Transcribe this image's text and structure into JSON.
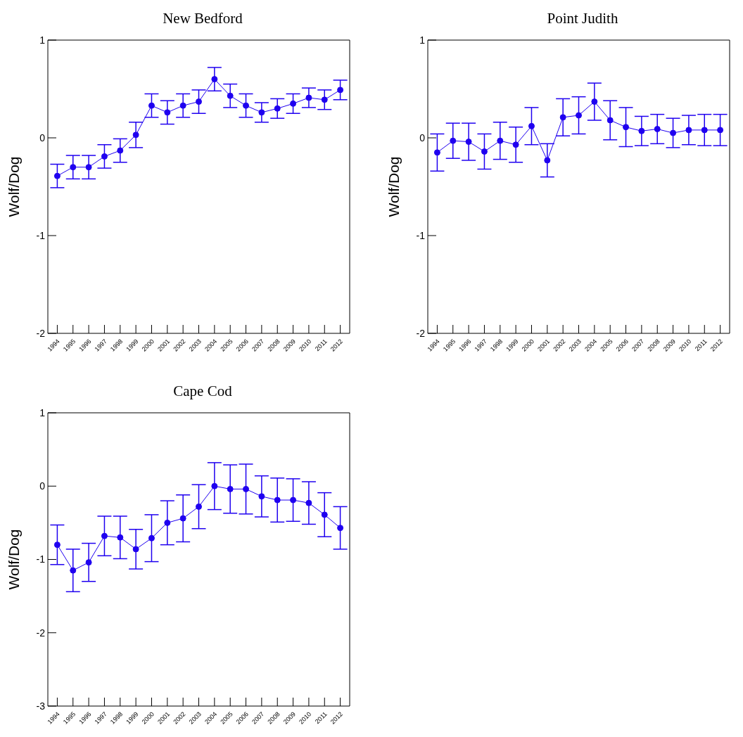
{
  "chart_data": [
    {
      "type": "line",
      "title": "New Bedford",
      "ylabel": "Wolf/Dog",
      "categories": [
        "1994",
        "1995",
        "1996",
        "1997",
        "1998",
        "1999",
        "2000",
        "2001",
        "2002",
        "2003",
        "2004",
        "2005",
        "2006",
        "2007",
        "2008",
        "2009",
        "2010",
        "2011",
        "2012"
      ],
      "ylim": [
        -2,
        1
      ],
      "yticks": [
        -2,
        -1,
        0,
        1
      ],
      "marker": "circle",
      "line_style": "solid",
      "series": [
        {
          "color": "#1f00f0",
          "values": [
            -0.39,
            -0.3,
            -0.3,
            -0.19,
            -0.13,
            0.03,
            0.33,
            0.26,
            0.33,
            0.37,
            0.6,
            0.43,
            0.33,
            0.26,
            0.3,
            0.35,
            0.41,
            0.39,
            0.49
          ],
          "errors": [
            0.12,
            0.12,
            0.12,
            0.12,
            0.12,
            0.13,
            0.12,
            0.12,
            0.12,
            0.12,
            0.12,
            0.12,
            0.12,
            0.1,
            0.1,
            0.1,
            0.1,
            0.1,
            0.1
          ]
        }
      ]
    },
    {
      "type": "line",
      "title": "Point Judith",
      "ylabel": "Wolf/Dog",
      "categories": [
        "1994",
        "1995",
        "1996",
        "1997",
        "1998",
        "1999",
        "2000",
        "2001",
        "2002",
        "2003",
        "2004",
        "2005",
        "2006",
        "2007",
        "2008",
        "2009",
        "2010",
        "2011",
        "2012"
      ],
      "ylim": [
        -2,
        1
      ],
      "yticks": [
        -2,
        -1,
        0,
        1
      ],
      "marker": "circle",
      "line_style": "solid",
      "series": [
        {
          "color": "#1f00f0",
          "values": [
            -0.15,
            -0.03,
            -0.04,
            -0.14,
            -0.03,
            -0.07,
            0.12,
            -0.23,
            0.21,
            0.23,
            0.37,
            0.18,
            0.11,
            0.07,
            0.09,
            0.05,
            0.08,
            0.08,
            0.08
          ],
          "errors": [
            0.19,
            0.18,
            0.19,
            0.18,
            0.19,
            0.18,
            0.19,
            0.17,
            0.19,
            0.19,
            0.19,
            0.2,
            0.2,
            0.15,
            0.15,
            0.15,
            0.15,
            0.16,
            0.16
          ]
        }
      ]
    },
    {
      "type": "line",
      "title": "Cape Cod",
      "ylabel": "Wolf/Dog",
      "categories": [
        "1994",
        "1995",
        "1996",
        "1997",
        "1998",
        "1999",
        "2000",
        "2001",
        "2002",
        "2003",
        "2004",
        "2005",
        "2006",
        "2007",
        "2008",
        "2009",
        "2010",
        "2011",
        "2012"
      ],
      "ylim": [
        -3,
        1
      ],
      "yticks": [
        -3,
        -2,
        -1,
        0,
        1
      ],
      "marker": "circle",
      "line_style": "solid",
      "series": [
        {
          "color": "#1f00f0",
          "values": [
            -0.8,
            -1.15,
            -1.04,
            -0.68,
            -0.7,
            -0.86,
            -0.71,
            -0.5,
            -0.44,
            -0.28,
            0.0,
            -0.04,
            -0.04,
            -0.14,
            -0.19,
            -0.19,
            -0.23,
            -0.39,
            -0.57
          ],
          "errors": [
            0.27,
            0.29,
            0.26,
            0.27,
            0.29,
            0.27,
            0.32,
            0.3,
            0.32,
            0.3,
            0.32,
            0.33,
            0.34,
            0.28,
            0.3,
            0.29,
            0.29,
            0.3,
            0.29
          ]
        }
      ]
    }
  ]
}
